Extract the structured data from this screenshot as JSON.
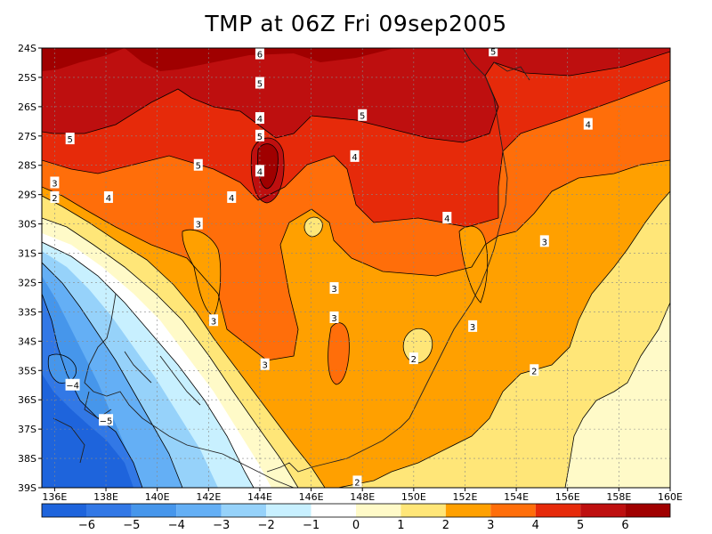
{
  "chart_data": {
    "type": "heatmap",
    "title": "TMP at 06Z Fri 09sep2005",
    "xlabel": "",
    "ylabel": "",
    "xlim": [
      135.5,
      160
    ],
    "ylim": [
      -39,
      -24
    ],
    "x_ticks": [
      "136E",
      "138E",
      "140E",
      "142E",
      "144E",
      "146E",
      "148E",
      "150E",
      "152E",
      "154E",
      "156E",
      "158E",
      "160E"
    ],
    "x_tick_values": [
      136,
      138,
      140,
      142,
      144,
      146,
      148,
      150,
      152,
      154,
      156,
      158,
      160
    ],
    "y_ticks": [
      "24S",
      "25S",
      "26S",
      "27S",
      "28S",
      "29S",
      "30S",
      "31S",
      "32S",
      "33S",
      "34S",
      "35S",
      "36S",
      "37S",
      "38S",
      "39S"
    ],
    "y_tick_values": [
      -24,
      -25,
      -26,
      -27,
      -28,
      -29,
      -30,
      -31,
      -32,
      -33,
      -34,
      -35,
      -36,
      -37,
      -38,
      -39
    ],
    "grid": true,
    "colorbar": {
      "labels": [
        "−6",
        "−5",
        "−4",
        "−3",
        "−2",
        "−1",
        "0",
        "1",
        "2",
        "3",
        "4",
        "5",
        "6"
      ],
      "levels": [
        -6,
        -5,
        -4,
        -3,
        -2,
        -1,
        0,
        1,
        2,
        3,
        4,
        5,
        6
      ],
      "colors": [
        "#1e64dc",
        "#3278e6",
        "#4696eb",
        "#64aff5",
        "#96d2fa",
        "#c8f0ff",
        "#ffffff",
        "#fffac8",
        "#ffe678",
        "#ffa000",
        "#ff6e0a",
        "#e62a0a",
        "#be0f0f",
        "#a00000"
      ]
    },
    "contour_labels": [
      {
        "text": "6",
        "lon": 144,
        "lat": -24.2
      },
      {
        "text": "5",
        "lon": 144,
        "lat": -25.2
      },
      {
        "text": "4",
        "lon": 144,
        "lat": -26.4
      },
      {
        "text": "5",
        "lon": 144,
        "lat": -27.0
      },
      {
        "text": "5",
        "lon": 136.6,
        "lat": -27.1
      },
      {
        "text": "5",
        "lon": 141.6,
        "lat": -28.0
      },
      {
        "text": "5",
        "lon": 148,
        "lat": -26.3
      },
      {
        "text": "4",
        "lon": 147.7,
        "lat": -27.7
      },
      {
        "text": "4",
        "lon": 144,
        "lat": -28.2
      },
      {
        "text": "3",
        "lon": 136,
        "lat": -28.6
      },
      {
        "text": "2",
        "lon": 136,
        "lat": -29.1
      },
      {
        "text": "4",
        "lon": 138.1,
        "lat": -29.1
      },
      {
        "text": "4",
        "lon": 142.9,
        "lat": -29.1
      },
      {
        "text": "3",
        "lon": 141.6,
        "lat": -30.0
      },
      {
        "text": "4",
        "lon": 151.3,
        "lat": -29.8
      },
      {
        "text": "3",
        "lon": 155.1,
        "lat": -30.6
      },
      {
        "text": "4",
        "lon": 156.8,
        "lat": -26.6
      },
      {
        "text": "5",
        "lon": 153.1,
        "lat": -24.1
      },
      {
        "text": "3",
        "lon": 146.9,
        "lat": -32.2
      },
      {
        "text": "3",
        "lon": 142.2,
        "lat": -33.3
      },
      {
        "text": "3",
        "lon": 146.9,
        "lat": -33.2
      },
      {
        "text": "3",
        "lon": 152.3,
        "lat": -33.5
      },
      {
        "text": "3",
        "lon": 144.2,
        "lat": -34.8
      },
      {
        "text": "2",
        "lon": 150.0,
        "lat": -34.6
      },
      {
        "text": "2",
        "lon": 154.7,
        "lat": -35.0
      },
      {
        "text": "−4",
        "lon": 136.7,
        "lat": -35.5
      },
      {
        "text": "−5",
        "lon": 138.0,
        "lat": -36.7
      },
      {
        "text": "2",
        "lon": 147.8,
        "lat": -38.8
      }
    ]
  }
}
